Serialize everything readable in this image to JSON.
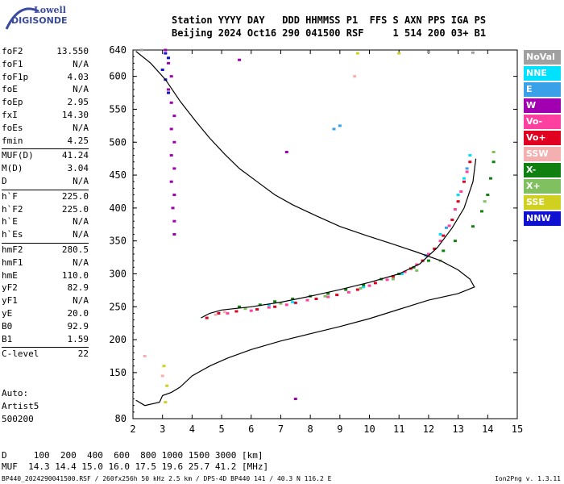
{
  "logo": {
    "line1": "Lowell",
    "line2": "DIGISONDE"
  },
  "header": {
    "line1": "Station YYYY DAY   DDD HHMMSS P1  FFS S AXN PPS IGA PS",
    "line2": "Beijing 2024 Oct16 290 041500 RSF     1 514 200 03+ B1"
  },
  "params": {
    "group1": [
      {
        "label": "foF2",
        "value": "13.550"
      },
      {
        "label": "foF1",
        "value": "N/A"
      },
      {
        "label": "foF1p",
        "value": "4.03"
      },
      {
        "label": "foE",
        "value": "N/A"
      },
      {
        "label": "foEp",
        "value": "2.95"
      },
      {
        "label": "fxI",
        "value": "14.30"
      },
      {
        "label": "foEs",
        "value": "N/A"
      },
      {
        "label": "fmin",
        "value": "4.25"
      }
    ],
    "group2": [
      {
        "label": "MUF(D)",
        "value": "41.24"
      },
      {
        "label": "M(D)",
        "value": "3.04"
      },
      {
        "label": "D",
        "value": "N/A"
      }
    ],
    "group3": [
      {
        "label": "h`F",
        "value": "225.0"
      },
      {
        "label": "h`F2",
        "value": "225.0"
      },
      {
        "label": "h`E",
        "value": "N/A"
      },
      {
        "label": "h`Es",
        "value": "N/A"
      }
    ],
    "group4": [
      {
        "label": "hmF2",
        "value": "280.5"
      },
      {
        "label": "hmF1",
        "value": "N/A"
      },
      {
        "label": "hmE",
        "value": "110.0"
      },
      {
        "label": "yF2",
        "value": "82.9"
      },
      {
        "label": "yF1",
        "value": "N/A"
      },
      {
        "label": "yE",
        "value": "20.0"
      },
      {
        "label": "B0",
        "value": "92.9"
      },
      {
        "label": "B1",
        "value": "1.59"
      }
    ],
    "group5": [
      {
        "label": "C-level",
        "value": "22"
      }
    ]
  },
  "auto": {
    "line1": "Auto:",
    "line2": "Artist5",
    "line3": "500200"
  },
  "legend": [
    {
      "label": "NoVal",
      "color": "#a0a0a0"
    },
    {
      "label": "NNE",
      "color": "#00e0ff"
    },
    {
      "label": "E",
      "color": "#3aa0e8"
    },
    {
      "label": "W",
      "color": "#a000b0"
    },
    {
      "label": "Vo-",
      "color": "#ff40a0"
    },
    {
      "label": "Vo+",
      "color": "#e00020"
    },
    {
      "label": "SSW",
      "color": "#f4b0b0"
    },
    {
      "label": "X-",
      "color": "#108010"
    },
    {
      "label": "X+",
      "color": "#80c060"
    },
    {
      "label": "SSE",
      "color": "#d0d020"
    },
    {
      "label": "NNW",
      "color": "#1010d0"
    }
  ],
  "bottom": {
    "line1": "D     100  200  400  600  800 1000 1500 3000 [km]",
    "line2": "MUF  14.3 14.4 15.0 16.0 17.5 19.6 25.7 41.2 [MHz]"
  },
  "footer": "BP440_2024290041500.RSF / 260fx256h 50 kHz 2.5 km / DPS-4D BP440 141 / 40.3 N 116.2 E",
  "version": "Ion2Png v. 1.3.11",
  "chart_data": {
    "type": "scatter",
    "xlim": [
      2,
      15
    ],
    "ylim": [
      80,
      640
    ],
    "x_ticks": [
      2,
      3,
      4,
      5,
      6,
      7,
      8,
      9,
      10,
      11,
      12,
      13,
      14,
      15
    ],
    "y_ticks": [
      80,
      150,
      200,
      250,
      300,
      350,
      400,
      450,
      500,
      550,
      600,
      640
    ],
    "grid": false,
    "series": [
      {
        "name": "Vo+",
        "color": "#e00020",
        "points": [
          [
            4.5,
            233
          ],
          [
            4.9,
            240
          ],
          [
            5.5,
            243
          ],
          [
            6.2,
            246
          ],
          [
            6.8,
            250
          ],
          [
            7.5,
            256
          ],
          [
            8.2,
            262
          ],
          [
            8.9,
            268
          ],
          [
            9.6,
            276
          ],
          [
            10.2,
            286
          ],
          [
            10.8,
            296
          ],
          [
            11.4,
            308
          ],
          [
            11.8,
            320
          ],
          [
            12.2,
            338
          ],
          [
            12.5,
            358
          ],
          [
            12.8,
            382
          ],
          [
            13.0,
            410
          ],
          [
            13.2,
            440
          ],
          [
            13.4,
            470
          ]
        ]
      },
      {
        "name": "Vo-",
        "color": "#ff40a0",
        "points": [
          [
            5.2,
            240
          ],
          [
            6.0,
            244
          ],
          [
            6.6,
            249
          ],
          [
            7.2,
            253
          ],
          [
            7.9,
            260
          ],
          [
            8.6,
            265
          ],
          [
            9.3,
            272
          ],
          [
            10.0,
            282
          ],
          [
            10.6,
            291
          ],
          [
            11.2,
            303
          ],
          [
            11.6,
            314
          ],
          [
            12.0,
            330
          ],
          [
            12.4,
            350
          ],
          [
            12.7,
            373
          ],
          [
            12.9,
            398
          ],
          [
            13.1,
            425
          ],
          [
            13.3,
            455
          ]
        ]
      },
      {
        "name": "NNE",
        "color": "#00e0ff",
        "points": [
          [
            6.6,
            253
          ],
          [
            7.4,
            257
          ],
          [
            9.8,
            280
          ],
          [
            11.1,
            300
          ],
          [
            12.4,
            360
          ],
          [
            13.0,
            420
          ],
          [
            13.2,
            445
          ],
          [
            13.4,
            480
          ]
        ]
      },
      {
        "name": "E",
        "color": "#3aa0e8",
        "points": [
          [
            8.8,
            520
          ],
          [
            9.0,
            525
          ],
          [
            11.9,
            328
          ],
          [
            12.6,
            370
          ],
          [
            13.3,
            460
          ]
        ]
      },
      {
        "name": "X-",
        "color": "#108010",
        "points": [
          [
            5.6,
            250
          ],
          [
            6.3,
            253
          ],
          [
            6.8,
            258
          ],
          [
            7.4,
            262
          ],
          [
            8.0,
            266
          ],
          [
            8.6,
            270
          ],
          [
            9.2,
            276
          ],
          [
            9.8,
            283
          ],
          [
            10.4,
            292
          ],
          [
            11.0,
            300
          ],
          [
            11.5,
            310
          ],
          [
            12.0,
            320
          ],
          [
            12.5,
            335
          ],
          [
            12.9,
            350
          ],
          [
            13.5,
            372
          ],
          [
            13.8,
            395
          ],
          [
            14.0,
            420
          ],
          [
            14.1,
            445
          ],
          [
            14.2,
            470
          ]
        ]
      },
      {
        "name": "X+",
        "color": "#80c060",
        "points": [
          [
            5.8,
            247
          ],
          [
            7.0,
            255
          ],
          [
            8.5,
            266
          ],
          [
            9.7,
            278
          ],
          [
            10.8,
            292
          ],
          [
            11.6,
            305
          ],
          [
            12.4,
            320
          ],
          [
            13.9,
            410
          ],
          [
            14.2,
            485
          ]
        ]
      },
      {
        "name": "SSW",
        "color": "#f4b0b0",
        "points": [
          [
            4.8,
            238
          ],
          [
            5.1,
            242
          ],
          [
            2.4,
            175
          ],
          [
            3.0,
            145
          ],
          [
            9.5,
            600
          ]
        ]
      },
      {
        "name": "W",
        "color": "#a000b0",
        "points": [
          [
            3.1,
            640
          ],
          [
            3.2,
            620
          ],
          [
            3.3,
            600
          ],
          [
            3.2,
            580
          ],
          [
            3.3,
            560
          ],
          [
            3.4,
            540
          ],
          [
            3.3,
            520
          ],
          [
            3.4,
            500
          ],
          [
            3.3,
            480
          ],
          [
            3.4,
            460
          ],
          [
            3.3,
            440
          ],
          [
            3.4,
            420
          ],
          [
            3.35,
            400
          ],
          [
            3.4,
            380
          ],
          [
            3.4,
            360
          ],
          [
            5.6,
            625
          ],
          [
            7.2,
            485
          ],
          [
            7.5,
            110
          ]
        ]
      },
      {
        "name": "NNW",
        "color": "#1010d0",
        "points": [
          [
            3.1,
            635
          ],
          [
            3.2,
            628
          ],
          [
            3.0,
            610
          ],
          [
            3.1,
            595
          ],
          [
            3.2,
            575
          ]
        ]
      },
      {
        "name": "SSE",
        "color": "#d0d020",
        "points": [
          [
            3.1,
            105
          ],
          [
            3.15,
            130
          ],
          [
            3.05,
            160
          ],
          [
            11.0,
            635
          ],
          [
            9.6,
            635
          ]
        ]
      },
      {
        "name": "NoVal",
        "color": "#a0a0a0",
        "points": [
          [
            2.3,
            640
          ],
          [
            12.0,
            637
          ],
          [
            13.5,
            636
          ]
        ]
      }
    ],
    "profile": [
      [
        2.1,
        108
      ],
      [
        2.4,
        100
      ],
      [
        2.9,
        105
      ],
      [
        3.0,
        115
      ],
      [
        3.3,
        120
      ],
      [
        3.6,
        128
      ],
      [
        4.0,
        145
      ],
      [
        4.6,
        160
      ],
      [
        5.2,
        172
      ],
      [
        6.0,
        185
      ],
      [
        7.0,
        198
      ],
      [
        8.0,
        209
      ],
      [
        9.0,
        220
      ],
      [
        10.0,
        232
      ],
      [
        11.0,
        246
      ],
      [
        12.0,
        260
      ],
      [
        13.0,
        270
      ],
      [
        13.55,
        280
      ],
      [
        13.4,
        292
      ],
      [
        13.0,
        306
      ],
      [
        12.4,
        320
      ],
      [
        11.6,
        333
      ],
      [
        10.8,
        345
      ],
      [
        9.9,
        358
      ],
      [
        9.0,
        372
      ],
      [
        8.2,
        388
      ],
      [
        7.4,
        405
      ],
      [
        6.8,
        420
      ],
      [
        6.2,
        440
      ],
      [
        5.6,
        460
      ],
      [
        5.1,
        482
      ],
      [
        4.6,
        506
      ],
      [
        4.1,
        533
      ],
      [
        3.6,
        562
      ],
      [
        3.1,
        595
      ],
      [
        2.6,
        620
      ],
      [
        2.1,
        638
      ]
    ],
    "trace_curve": [
      [
        13.6,
        475
      ],
      [
        13.5,
        440
      ],
      [
        13.2,
        400
      ],
      [
        12.8,
        370
      ],
      [
        12.3,
        340
      ],
      [
        11.7,
        315
      ],
      [
        11.0,
        300
      ],
      [
        10.0,
        287
      ],
      [
        9.0,
        276
      ],
      [
        8.0,
        266
      ],
      [
        7.0,
        257
      ],
      [
        6.0,
        250
      ],
      [
        5.0,
        245
      ],
      [
        4.6,
        240
      ],
      [
        4.3,
        233
      ]
    ]
  }
}
